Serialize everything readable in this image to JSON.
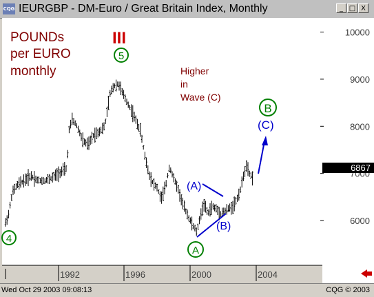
{
  "window": {
    "title": "IEURGBP - DM-Euro / Great Britain Index, Monthly",
    "app_icon_text": "CQG",
    "minimize_label": "_",
    "maximize_label": "□",
    "close_label": "X"
  },
  "chart_data": {
    "type": "ohlc",
    "annotations": {
      "left_note": [
        "POUNDs",
        "per EURO",
        "monthly"
      ],
      "wave_note": [
        "Higher",
        "in",
        "Wave (C)"
      ],
      "wave_III": "III",
      "wave_5": "5",
      "wave_4": "4",
      "wave_A_circle": "A",
      "wave_B_circle": "B",
      "wave_A_paren": "(A)",
      "wave_B_paren": "(B)",
      "wave_C_paren": "(C)"
    },
    "x_ticks": [
      "1992",
      "1996",
      "2000",
      "2004"
    ],
    "y_ticks": [
      "10000",
      "9000",
      "8000",
      "7000",
      "6000"
    ],
    "y_range": [
      5050,
      10300
    ],
    "last_price": "6867",
    "colors": {
      "bars": "#000000",
      "wave_red": "#cc0000",
      "wave_green": "#008000",
      "wave_blue": "#0000cc",
      "note_text": "#800000",
      "last_price_bg": "#000000"
    }
  },
  "status": {
    "timestamp": "Wed Oct 29 2003 09:08:13",
    "copyright": "CQG © 2003"
  }
}
